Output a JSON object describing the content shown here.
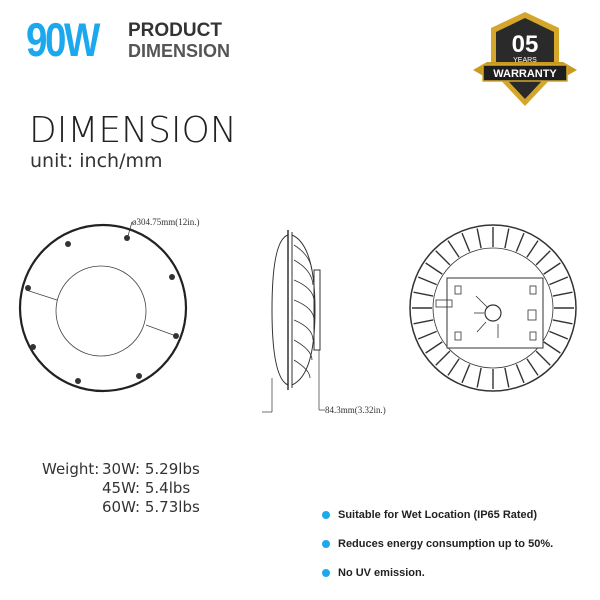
{
  "header": {
    "wattage": "90W",
    "title_line1": "PRODUCT",
    "title_line2": "DIMENSION"
  },
  "badge": {
    "number": "05",
    "years": "YEARS",
    "label": "WARRANTY"
  },
  "section": {
    "title": "DIMENSION",
    "unit": "unit: inch/mm"
  },
  "drawings": {
    "diameter": "ø304.75mm(12in.)",
    "height": "84.3mm(3.32in.)"
  },
  "weights": {
    "label": "Weight:",
    "rows": [
      {
        "model": "30W:",
        "value": "5.29lbs"
      },
      {
        "model": "45W:",
        "value": "5.4lbs"
      },
      {
        "model": "60W:",
        "value": "5.73lbs"
      }
    ]
  },
  "features": [
    "Suitable for Wet Location (IP65 Rated)",
    "Reduces energy consumption up to 50%.",
    "No UV emission."
  ],
  "colors": {
    "accent": "#1ca8ef",
    "gold": "#d4a62a",
    "badge_dark": "#2a2a2a"
  }
}
